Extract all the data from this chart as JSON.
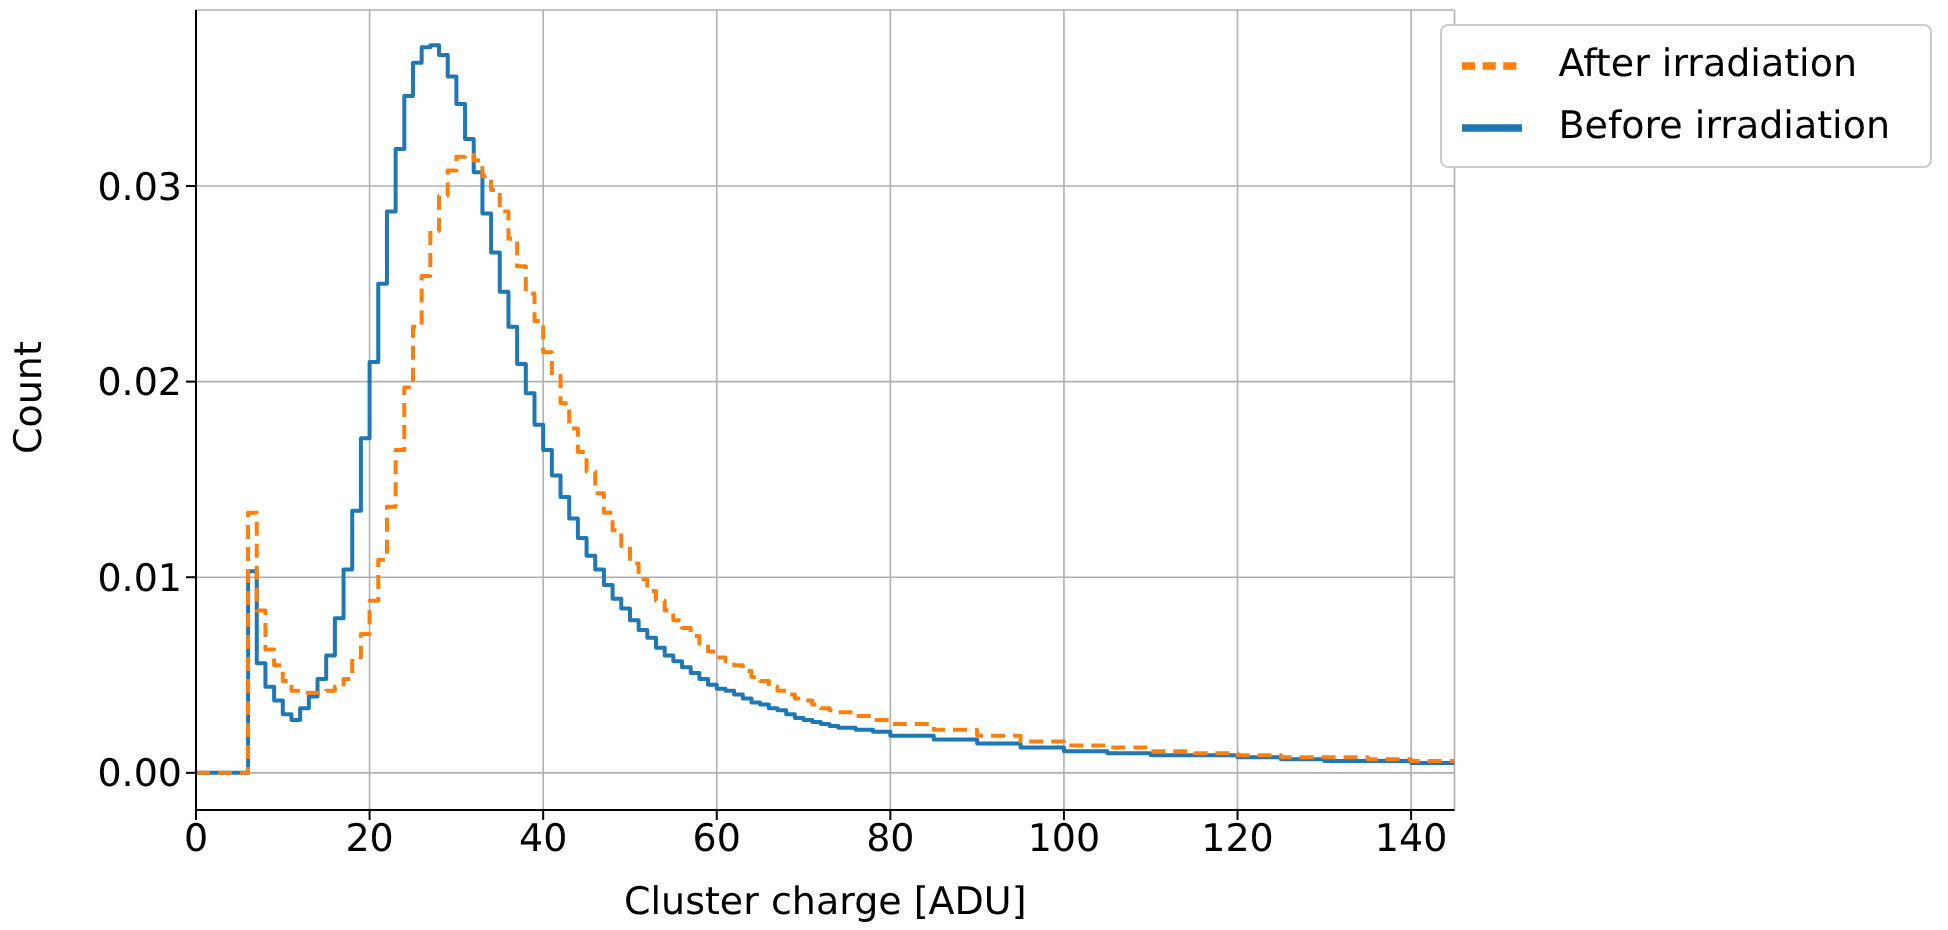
{
  "chart_data": {
    "type": "histogram",
    "xlabel": "Cluster charge [ADU]",
    "ylabel": "Count",
    "bins": [
      0,
      1,
      2,
      3,
      4,
      5,
      6,
      7,
      8,
      9,
      10,
      11,
      12,
      13,
      14,
      15,
      16,
      17,
      18,
      19,
      20,
      21,
      22,
      23,
      24,
      25,
      26,
      27,
      28,
      29,
      30,
      31,
      32,
      33,
      34,
      35,
      36,
      37,
      38,
      39,
      40,
      41,
      42,
      43,
      44,
      45,
      46,
      47,
      48,
      49,
      50,
      51,
      52,
      53,
      54,
      55,
      56,
      57,
      58,
      59,
      60,
      61,
      62,
      63,
      64,
      65,
      66,
      67,
      68,
      69,
      70,
      71,
      72,
      73,
      74,
      76,
      78,
      80,
      85,
      90,
      95,
      100,
      105,
      110,
      115,
      120,
      125,
      130,
      135,
      140,
      145
    ],
    "series": [
      {
        "name": "Before irradiation",
        "color": "#1f77b4",
        "line_style": "solid",
        "values": [
          0,
          0,
          0,
          0,
          0,
          0,
          0.0103,
          0.0056,
          0.0044,
          0.0037,
          0.003,
          0.0027,
          0.0033,
          0.0039,
          0.0048,
          0.006,
          0.0079,
          0.0104,
          0.0134,
          0.0171,
          0.021,
          0.025,
          0.0287,
          0.0319,
          0.0346,
          0.0363,
          0.0371,
          0.0372,
          0.0367,
          0.0356,
          0.0342,
          0.0324,
          0.0307,
          0.0286,
          0.0266,
          0.0246,
          0.0228,
          0.0209,
          0.0194,
          0.0178,
          0.0165,
          0.0152,
          0.0141,
          0.013,
          0.012,
          0.0111,
          0.0104,
          0.0096,
          0.0089,
          0.0084,
          0.0078,
          0.0073,
          0.0069,
          0.0064,
          0.006,
          0.0057,
          0.0054,
          0.0051,
          0.0048,
          0.0045,
          0.0043,
          0.0042,
          0.004,
          0.0038,
          0.0036,
          0.0035,
          0.0033,
          0.0032,
          0.003,
          0.0028,
          0.0027,
          0.0026,
          0.0025,
          0.0024,
          0.0023,
          0.0022,
          0.0021,
          0.0019,
          0.0017,
          0.0015,
          0.0013,
          0.0011,
          0.001,
          0.0009,
          0.0009,
          0.0008,
          0.0007,
          0.0006,
          0.0006,
          0.0005
        ]
      },
      {
        "name": "After irradiation",
        "color": "#ff7f0e",
        "line_style": "dashed",
        "values": [
          0,
          0,
          0,
          0,
          0,
          0,
          0.0133,
          0.0083,
          0.0063,
          0.0055,
          0.0047,
          0.0042,
          0.0041,
          0.0041,
          0.0041,
          0.0042,
          0.0044,
          0.0048,
          0.0059,
          0.0071,
          0.0088,
          0.0109,
          0.0136,
          0.0165,
          0.0197,
          0.0228,
          0.0254,
          0.0277,
          0.0295,
          0.0308,
          0.0315,
          0.0316,
          0.0313,
          0.0305,
          0.0298,
          0.0287,
          0.0273,
          0.0259,
          0.0245,
          0.0231,
          0.0215,
          0.0203,
          0.0189,
          0.0176,
          0.0164,
          0.0154,
          0.0143,
          0.0133,
          0.0124,
          0.0116,
          0.0107,
          0.0099,
          0.0093,
          0.0088,
          0.0083,
          0.0078,
          0.0074,
          0.007,
          0.0066,
          0.0062,
          0.0059,
          0.0057,
          0.0055,
          0.0052,
          0.0049,
          0.0047,
          0.0044,
          0.0042,
          0.004,
          0.0038,
          0.0037,
          0.0035,
          0.0033,
          0.0032,
          0.0031,
          0.0029,
          0.0027,
          0.0025,
          0.0022,
          0.0019,
          0.0016,
          0.0014,
          0.0013,
          0.0011,
          0.001,
          0.0009,
          0.0008,
          0.0008,
          0.0007,
          0.0006
        ]
      }
    ],
    "xlim": [
      0,
      145
    ],
    "xticks": [
      0,
      20,
      40,
      60,
      80,
      100,
      120,
      140
    ],
    "ylim": [
      -0.0019,
      0.039
    ],
    "yticks": [
      {
        "value": 0,
        "label": "0.00"
      },
      {
        "value": 0.01,
        "label": "0.01"
      },
      {
        "value": 0.02,
        "label": "0.02"
      },
      {
        "value": 0.03,
        "label": "0.03"
      }
    ],
    "grid": true,
    "legend": "top right"
  }
}
